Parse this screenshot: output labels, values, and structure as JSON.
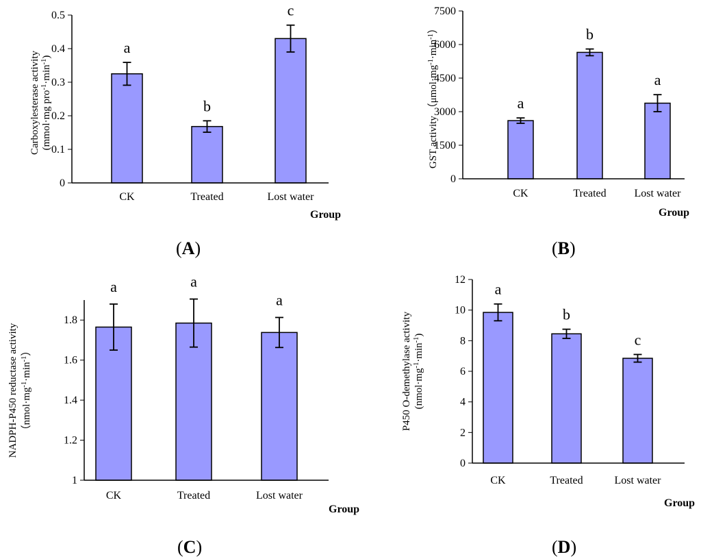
{
  "chart_data": [
    {
      "panel": "A",
      "type": "bar",
      "categories": [
        "CK",
        "Treated",
        "Lost water"
      ],
      "values": [
        0.325,
        0.168,
        0.43
      ],
      "errors": [
        0.034,
        0.017,
        0.04
      ],
      "significance": [
        "a",
        "b",
        "c"
      ],
      "ylabel_line1": "Carboxylesterase activity",
      "ylabel_line2": "(mmol·mg pro-1·min-1)",
      "xlabel": "Group",
      "ylim": [
        0,
        0.5
      ],
      "yticks": [
        "0",
        "0.1",
        "0.2",
        "0.3",
        "0.4",
        "0.5"
      ],
      "bar_color": "#9999ff"
    },
    {
      "panel": "B",
      "type": "bar",
      "categories": [
        "CK",
        "Treated",
        "Lost water"
      ],
      "values": [
        2600,
        5650,
        3380
      ],
      "errors": [
        120,
        150,
        380
      ],
      "significance": [
        "a",
        "b",
        "a"
      ],
      "ylabel_line1": "GST activity （μmol·mg-1·min-1）",
      "ylabel_line2": "",
      "xlabel": "Group",
      "ylim": [
        0,
        7500
      ],
      "yticks": [
        "0",
        "1500",
        "3000",
        "4500",
        "6000",
        "7500"
      ],
      "bar_color": "#9999ff"
    },
    {
      "panel": "C",
      "type": "bar",
      "categories": [
        "CK",
        "Treated",
        "Lost water"
      ],
      "values": [
        1.765,
        1.785,
        1.738
      ],
      "errors": [
        0.115,
        0.12,
        0.075
      ],
      "significance": [
        "a",
        "a",
        "a"
      ],
      "ylabel_line1": "NADPH-P450 reductase activity",
      "ylabel_line2": "（nmol·mg-1·min-1）",
      "xlabel": "Group",
      "ylim": [
        1,
        1.9
      ],
      "yticks": [
        "1",
        "1.2",
        "1.4",
        "1.6",
        "1.8"
      ],
      "bar_color": "#9999ff"
    },
    {
      "panel": "D",
      "type": "bar",
      "categories": [
        "CK",
        "Treated",
        "Lost water"
      ],
      "values": [
        9.85,
        8.45,
        6.85
      ],
      "errors": [
        0.55,
        0.3,
        0.25
      ],
      "significance": [
        "a",
        "b",
        "c"
      ],
      "ylabel_line1": "P450 O-demethylase activity",
      "ylabel_line2": "(nmol·mg-1·min-1)",
      "xlabel": "Group",
      "ylim": [
        0,
        12
      ],
      "yticks": [
        "0",
        "2",
        "4",
        "6",
        "8",
        "10",
        "12"
      ],
      "bar_color": "#9999ff"
    }
  ],
  "panel_labels": [
    "A",
    "B",
    "C",
    "D"
  ]
}
